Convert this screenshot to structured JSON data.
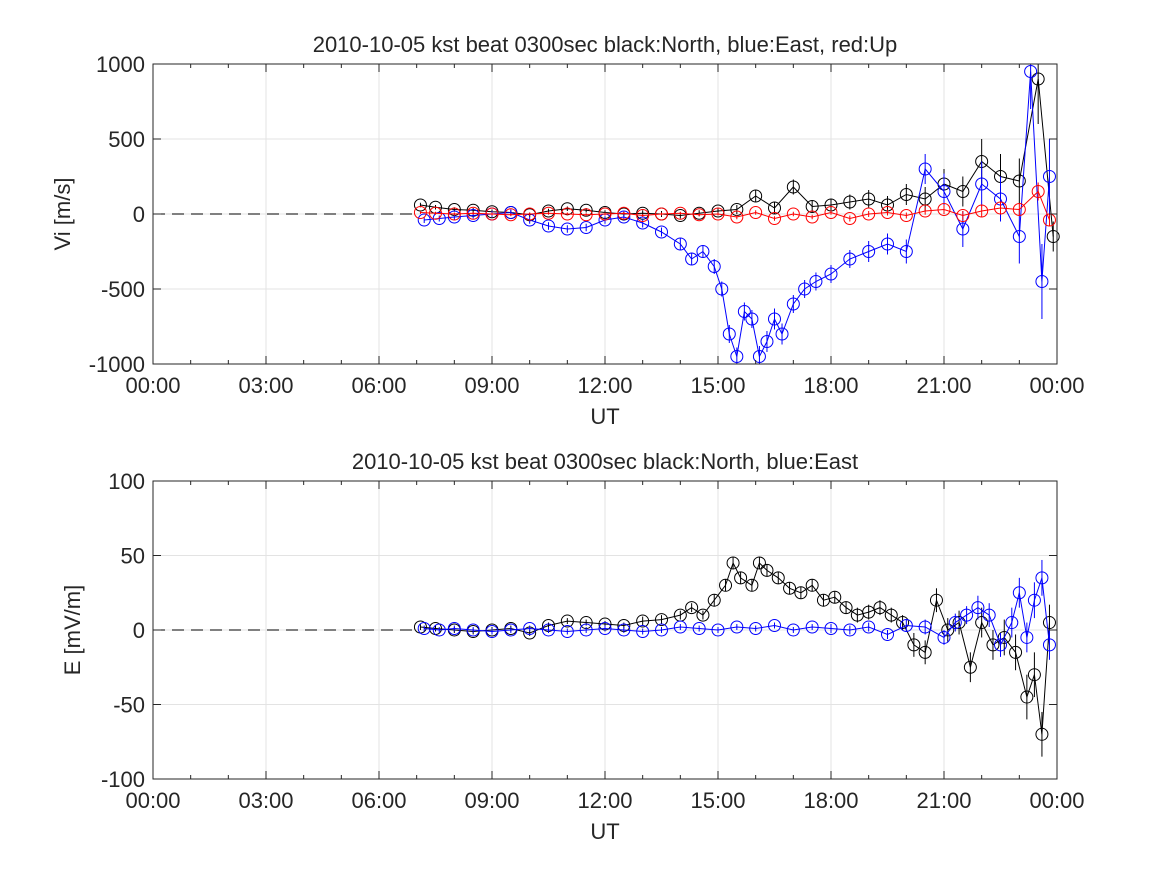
{
  "chart_data": [
    {
      "type": "scatter",
      "title": "2010-10-05 kst beat 0300sec black:North, blue:East, red:Up",
      "xlabel": "UT",
      "ylabel": "Vi [m/s]",
      "xlim": [
        0,
        24
      ],
      "ylim": [
        -1000,
        1000
      ],
      "xticks": [
        0,
        3,
        6,
        9,
        12,
        15,
        18,
        21,
        24
      ],
      "xtick_labels": [
        "00:00",
        "03:00",
        "06:00",
        "09:00",
        "12:00",
        "15:00",
        "18:00",
        "21:00",
        "00:00"
      ],
      "yticks": [
        -1000,
        -500,
        0,
        500,
        1000
      ],
      "ytick_labels": [
        "-1000",
        "-500",
        "0",
        "500",
        "1000"
      ],
      "grid": true,
      "marker": "open circle with error bar",
      "reference_line": {
        "y": 0,
        "from_x": 0,
        "to_x": 7,
        "style": "dashed"
      },
      "series": [
        {
          "color": "#000000",
          "x": [
            7.1,
            7.5,
            8.0,
            8.5,
            9.0,
            9.5,
            10.0,
            10.5,
            11.0,
            11.5,
            12.0,
            12.5,
            13.0,
            13.5,
            14.0,
            14.5,
            15.0,
            15.5,
            16.0,
            16.5,
            17.0,
            17.5,
            18.0,
            18.5,
            19.0,
            19.5,
            20.0,
            20.5,
            21.0,
            21.5,
            22.0,
            22.5,
            23.0,
            23.5,
            23.9
          ],
          "y": [
            60,
            45,
            30,
            25,
            15,
            10,
            -5,
            20,
            35,
            25,
            10,
            0,
            5,
            0,
            -10,
            5,
            20,
            30,
            120,
            40,
            180,
            50,
            60,
            80,
            100,
            60,
            130,
            100,
            200,
            150,
            350,
            250,
            220,
            900,
            -150
          ],
          "err": [
            15,
            15,
            15,
            15,
            15,
            15,
            15,
            15,
            15,
            15,
            15,
            15,
            20,
            20,
            20,
            20,
            20,
            30,
            40,
            40,
            50,
            40,
            40,
            50,
            60,
            60,
            70,
            80,
            100,
            100,
            150,
            150,
            150,
            300,
            100
          ]
        },
        {
          "color": "#0000ff",
          "x": [
            7.2,
            7.6,
            8.0,
            8.5,
            9.0,
            9.5,
            10.0,
            10.5,
            11.0,
            11.5,
            12.0,
            12.5,
            13.0,
            13.5,
            14.0,
            14.3,
            14.6,
            14.9,
            15.1,
            15.3,
            15.5,
            15.7,
            15.9,
            16.1,
            16.3,
            16.5,
            16.7,
            17.0,
            17.3,
            17.6,
            18.0,
            18.5,
            19.0,
            19.5,
            20.0,
            20.5,
            21.0,
            21.5,
            22.0,
            22.5,
            23.0,
            23.3,
            23.6,
            23.8
          ],
          "y": [
            -40,
            -30,
            -20,
            -10,
            0,
            10,
            -40,
            -80,
            -100,
            -90,
            -40,
            -20,
            -60,
            -120,
            -200,
            -300,
            -250,
            -350,
            -500,
            -800,
            -950,
            -650,
            -700,
            -950,
            -850,
            -700,
            -800,
            -600,
            -500,
            -450,
            -400,
            -300,
            -250,
            -200,
            -250,
            300,
            150,
            -100,
            200,
            100,
            -150,
            950,
            -450,
            250
          ],
          "err": [
            20,
            20,
            20,
            20,
            20,
            20,
            25,
            25,
            25,
            25,
            25,
            25,
            30,
            30,
            40,
            40,
            40,
            50,
            50,
            60,
            60,
            60,
            60,
            70,
            70,
            70,
            70,
            60,
            60,
            60,
            60,
            60,
            70,
            70,
            80,
            100,
            120,
            120,
            150,
            150,
            180,
            250,
            250,
            250
          ]
        },
        {
          "color": "#ff0000",
          "x": [
            7.1,
            7.5,
            8.0,
            8.5,
            9.0,
            9.5,
            10.0,
            10.5,
            11.0,
            11.5,
            12.0,
            12.5,
            13.0,
            13.5,
            14.0,
            14.5,
            15.0,
            15.5,
            16.0,
            16.5,
            17.0,
            17.5,
            18.0,
            18.5,
            19.0,
            19.5,
            20.0,
            20.5,
            21.0,
            21.5,
            22.0,
            22.5,
            23.0,
            23.5,
            23.8
          ],
          "y": [
            10,
            5,
            0,
            5,
            0,
            -5,
            0,
            5,
            0,
            -5,
            0,
            5,
            -10,
            0,
            5,
            -5,
            0,
            -20,
            10,
            -30,
            0,
            -20,
            10,
            -30,
            0,
            10,
            -10,
            20,
            30,
            -10,
            20,
            40,
            30,
            150,
            -40
          ],
          "err": [
            10,
            10,
            10,
            10,
            10,
            10,
            10,
            10,
            10,
            10,
            10,
            10,
            10,
            10,
            10,
            10,
            10,
            15,
            15,
            15,
            15,
            15,
            15,
            20,
            20,
            20,
            20,
            25,
            30,
            30,
            40,
            40,
            40,
            60,
            40
          ]
        }
      ]
    },
    {
      "type": "scatter",
      "title": "2010-10-05 kst beat 0300sec black:North, blue:East",
      "xlabel": "UT",
      "ylabel": "E [mV/m]",
      "xlim": [
        0,
        24
      ],
      "ylim": [
        -100,
        100
      ],
      "xticks": [
        0,
        3,
        6,
        9,
        12,
        15,
        18,
        21,
        24
      ],
      "xtick_labels": [
        "00:00",
        "03:00",
        "06:00",
        "09:00",
        "12:00",
        "15:00",
        "18:00",
        "21:00",
        "00:00"
      ],
      "yticks": [
        -100,
        -50,
        0,
        50,
        100
      ],
      "ytick_labels": [
        "-100",
        "-50",
        "0",
        "50",
        "100"
      ],
      "grid": true,
      "marker": "open circle with error bar",
      "reference_line": {
        "y": 0,
        "from_x": 0,
        "to_x": 7,
        "style": "dashed"
      },
      "series": [
        {
          "color": "#000000",
          "x": [
            7.1,
            7.5,
            8.0,
            8.5,
            9.0,
            9.5,
            10.0,
            10.5,
            11.0,
            11.5,
            12.0,
            12.5,
            13.0,
            13.5,
            14.0,
            14.3,
            14.6,
            14.9,
            15.2,
            15.4,
            15.6,
            15.9,
            16.1,
            16.3,
            16.6,
            16.9,
            17.2,
            17.5,
            17.8,
            18.1,
            18.4,
            18.7,
            19.0,
            19.3,
            19.6,
            19.9,
            20.2,
            20.5,
            20.8,
            21.1,
            21.4,
            21.7,
            22.0,
            22.3,
            22.6,
            22.9,
            23.2,
            23.4,
            23.6,
            23.8
          ],
          "y": [
            2,
            1,
            0,
            -1,
            0,
            1,
            -2,
            3,
            6,
            5,
            4,
            3,
            6,
            7,
            10,
            15,
            10,
            20,
            30,
            45,
            35,
            30,
            45,
            40,
            35,
            28,
            25,
            30,
            20,
            22,
            15,
            10,
            12,
            15,
            10,
            5,
            -10,
            -15,
            20,
            0,
            5,
            -25,
            5,
            -10,
            -5,
            -15,
            -45,
            -30,
            -70,
            5
          ],
          "err": [
            2,
            2,
            2,
            2,
            2,
            2,
            2,
            2,
            2,
            2,
            2,
            2,
            3,
            3,
            3,
            3,
            3,
            4,
            4,
            4,
            4,
            4,
            4,
            4,
            4,
            4,
            4,
            4,
            4,
            4,
            4,
            5,
            5,
            5,
            5,
            5,
            8,
            8,
            8,
            8,
            8,
            10,
            10,
            10,
            12,
            12,
            15,
            15,
            15,
            12
          ]
        },
        {
          "color": "#0000ff",
          "x": [
            7.2,
            7.6,
            8.0,
            8.5,
            9.0,
            9.5,
            10.0,
            10.5,
            11.0,
            11.5,
            12.0,
            12.5,
            13.0,
            13.5,
            14.0,
            14.5,
            15.0,
            15.5,
            16.0,
            16.5,
            17.0,
            17.5,
            18.0,
            18.5,
            19.0,
            19.5,
            20.0,
            20.5,
            21.0,
            21.3,
            21.6,
            21.9,
            22.2,
            22.5,
            22.8,
            23.0,
            23.2,
            23.4,
            23.6,
            23.8
          ],
          "y": [
            1,
            0,
            1,
            0,
            -1,
            0,
            1,
            0,
            -1,
            0,
            1,
            0,
            -1,
            0,
            2,
            1,
            0,
            2,
            1,
            3,
            0,
            2,
            1,
            0,
            2,
            -3,
            3,
            2,
            -5,
            5,
            10,
            15,
            10,
            -10,
            5,
            25,
            -5,
            20,
            35,
            -10
          ],
          "err": [
            2,
            2,
            2,
            2,
            2,
            2,
            2,
            2,
            2,
            2,
            2,
            2,
            2,
            2,
            2,
            2,
            2,
            2,
            2,
            2,
            2,
            2,
            3,
            3,
            3,
            3,
            4,
            5,
            5,
            6,
            6,
            8,
            8,
            8,
            10,
            10,
            10,
            12,
            12,
            10
          ]
        }
      ]
    }
  ]
}
